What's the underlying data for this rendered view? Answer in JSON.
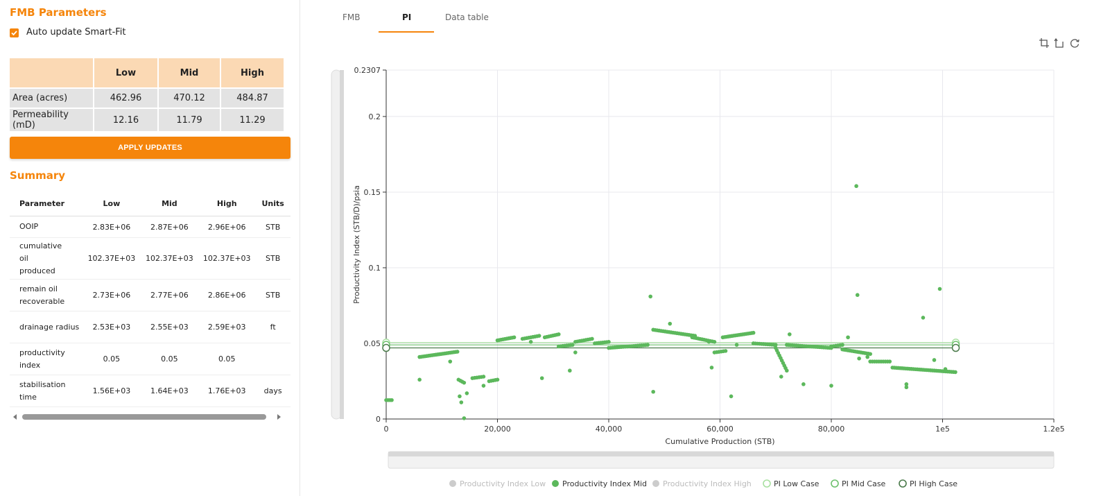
{
  "fmb": {
    "title": "FMB Parameters",
    "auto_update_label": "Auto update Smart-Fit",
    "columns": [
      "Low",
      "Mid",
      "High"
    ],
    "rows": [
      {
        "label": "Area (acres)",
        "values": [
          "462.96",
          "470.12",
          "484.87"
        ]
      },
      {
        "label": "Permeability (mD)",
        "values": [
          "12.16",
          "11.79",
          "11.29"
        ]
      }
    ],
    "apply_label": "APPLY UPDATES"
  },
  "summary": {
    "title": "Summary",
    "headers": [
      "Parameter",
      "Low",
      "Mid",
      "High",
      "Units"
    ],
    "rows": [
      {
        "param": "OOIP",
        "low": "2.83E+06",
        "mid": "2.87E+06",
        "high": "2.96E+06",
        "units": "STB"
      },
      {
        "param": "cumulative oil produced",
        "low": "102.37E+03",
        "mid": "102.37E+03",
        "high": "102.37E+03",
        "units": "STB"
      },
      {
        "param": "remain oil recoverable",
        "low": "2.73E+06",
        "mid": "2.77E+06",
        "high": "2.86E+06",
        "units": "STB"
      },
      {
        "param": "drainage radius",
        "low": "2.53E+03",
        "mid": "2.55E+03",
        "high": "2.59E+03",
        "units": "ft"
      },
      {
        "param": "productivity index",
        "low": "0.05",
        "mid": "0.05",
        "high": "0.05",
        "units": ""
      },
      {
        "param": "stabilisation time",
        "low": "1.56E+03",
        "mid": "1.64E+03",
        "high": "1.76E+03",
        "units": "days"
      }
    ]
  },
  "tabs": [
    {
      "label": "FMB",
      "active": false
    },
    {
      "label": "PI",
      "active": true
    },
    {
      "label": "Data table",
      "active": false
    }
  ],
  "colors": {
    "accent": "#f5850b",
    "series_mid": "#5cb85c",
    "pi_low": "#a8e0a0",
    "pi_mid": "#6cc06c",
    "pi_high": "#4a7a4a",
    "legend_disabled": "#cccccc"
  },
  "chart_data": {
    "type": "scatter",
    "xlabel": "Cumulative Production (STB)",
    "ylabel": "Productivity Index (STB/D)/psia",
    "xlim": [
      0,
      120000
    ],
    "ylim": [
      0,
      0.2307
    ],
    "xticks": [
      0,
      20000,
      40000,
      60000,
      80000,
      100000,
      120000
    ],
    "xtick_labels": [
      "0",
      "20,000",
      "40,000",
      "60,000",
      "80,000",
      "1e5",
      "1.2e5"
    ],
    "yticks": [
      0,
      0.05,
      0.1,
      0.15,
      0.2,
      0.2307
    ],
    "ytick_labels": [
      "0",
      "0.05",
      "0.1",
      "0.15",
      "0.2",
      "0.2307"
    ],
    "grid": true,
    "legend_position": "bottom",
    "legend": [
      {
        "name": "Productivity Index Low",
        "enabled": false,
        "marker": "filled"
      },
      {
        "name": "Productivity Index Mid",
        "enabled": true,
        "marker": "filled"
      },
      {
        "name": "Productivity Index High",
        "enabled": false,
        "marker": "filled"
      },
      {
        "name": "PI Low Case",
        "enabled": true,
        "marker": "hollow"
      },
      {
        "name": "PI Mid Case",
        "enabled": true,
        "marker": "hollow"
      },
      {
        "name": "PI High Case",
        "enabled": true,
        "marker": "hollow"
      }
    ],
    "case_lines": [
      {
        "name": "PI Low Case",
        "x": [
          0,
          102370
        ],
        "y": [
          0.0505,
          0.0505
        ]
      },
      {
        "name": "PI Mid Case",
        "x": [
          0,
          102370
        ],
        "y": [
          0.049,
          0.049
        ]
      },
      {
        "name": "PI High Case",
        "x": [
          0,
          102370
        ],
        "y": [
          0.047,
          0.047
        ]
      }
    ],
    "series": [
      {
        "name": "Productivity Index Mid",
        "segments": [
          {
            "x0": 0,
            "x1": 1000,
            "y0": 0.0125,
            "y1": 0.0125,
            "n": 4
          },
          {
            "x0": 6000,
            "x1": 12800,
            "y0": 0.041,
            "y1": 0.0445,
            "n": 22
          },
          {
            "x0": 13000,
            "x1": 14000,
            "y0": 0.026,
            "y1": 0.024,
            "n": 4
          },
          {
            "x0": 15500,
            "x1": 17500,
            "y0": 0.027,
            "y1": 0.028,
            "n": 6
          },
          {
            "x0": 18500,
            "x1": 20000,
            "y0": 0.025,
            "y1": 0.026,
            "n": 5
          },
          {
            "x0": 20000,
            "x1": 23000,
            "y0": 0.052,
            "y1": 0.054,
            "n": 10
          },
          {
            "x0": 24500,
            "x1": 27500,
            "y0": 0.053,
            "y1": 0.055,
            "n": 9
          },
          {
            "x0": 28500,
            "x1": 31000,
            "y0": 0.054,
            "y1": 0.056,
            "n": 8
          },
          {
            "x0": 31000,
            "x1": 33500,
            "y0": 0.048,
            "y1": 0.049,
            "n": 8
          },
          {
            "x0": 34000,
            "x1": 37000,
            "y0": 0.051,
            "y1": 0.053,
            "n": 9
          },
          {
            "x0": 37500,
            "x1": 40000,
            "y0": 0.05,
            "y1": 0.051,
            "n": 8
          },
          {
            "x0": 40000,
            "x1": 47000,
            "y0": 0.047,
            "y1": 0.049,
            "n": 20
          },
          {
            "x0": 48000,
            "x1": 55500,
            "y0": 0.059,
            "y1": 0.055,
            "n": 22
          },
          {
            "x0": 55000,
            "x1": 59000,
            "y0": 0.054,
            "y1": 0.051,
            "n": 12
          },
          {
            "x0": 59000,
            "x1": 61000,
            "y0": 0.044,
            "y1": 0.045,
            "n": 6
          },
          {
            "x0": 60500,
            "x1": 66000,
            "y0": 0.054,
            "y1": 0.057,
            "n": 18
          },
          {
            "x0": 66000,
            "x1": 70000,
            "y0": 0.05,
            "y1": 0.049,
            "n": 12
          },
          {
            "x0": 70000,
            "x1": 72000,
            "y0": 0.047,
            "y1": 0.032,
            "n": 10
          },
          {
            "x0": 72000,
            "x1": 80000,
            "y0": 0.049,
            "y1": 0.047,
            "n": 24
          },
          {
            "x0": 80000,
            "x1": 82000,
            "y0": 0.048,
            "y1": 0.049,
            "n": 6
          },
          {
            "x0": 82000,
            "x1": 87000,
            "y0": 0.046,
            "y1": 0.043,
            "n": 16
          },
          {
            "x0": 87000,
            "x1": 90500,
            "y0": 0.038,
            "y1": 0.038,
            "n": 10
          },
          {
            "x0": 91000,
            "x1": 102300,
            "y0": 0.034,
            "y1": 0.031,
            "n": 34
          }
        ],
        "points": [
          [
            6000,
            0.026
          ],
          [
            11500,
            0.038
          ],
          [
            13200,
            0.015
          ],
          [
            13500,
            0.011
          ],
          [
            14000,
            0.0005
          ],
          [
            14500,
            0.017
          ],
          [
            17500,
            0.022
          ],
          [
            26000,
            0.051
          ],
          [
            28000,
            0.027
          ],
          [
            33000,
            0.032
          ],
          [
            34000,
            0.044
          ],
          [
            47500,
            0.081
          ],
          [
            48000,
            0.018
          ],
          [
            51000,
            0.063
          ],
          [
            58000,
            0.051
          ],
          [
            58500,
            0.034
          ],
          [
            62000,
            0.015
          ],
          [
            63000,
            0.049
          ],
          [
            71000,
            0.028
          ],
          [
            72500,
            0.056
          ],
          [
            75000,
            0.023
          ],
          [
            80000,
            0.022
          ],
          [
            83000,
            0.054
          ],
          [
            84500,
            0.154
          ],
          [
            84700,
            0.082
          ],
          [
            85000,
            0.04
          ],
          [
            86500,
            0.041
          ],
          [
            93500,
            0.021
          ],
          [
            93500,
            0.023
          ],
          [
            96500,
            0.067
          ],
          [
            98500,
            0.039
          ],
          [
            99500,
            0.086
          ],
          [
            100500,
            0.033
          ]
        ]
      }
    ]
  }
}
